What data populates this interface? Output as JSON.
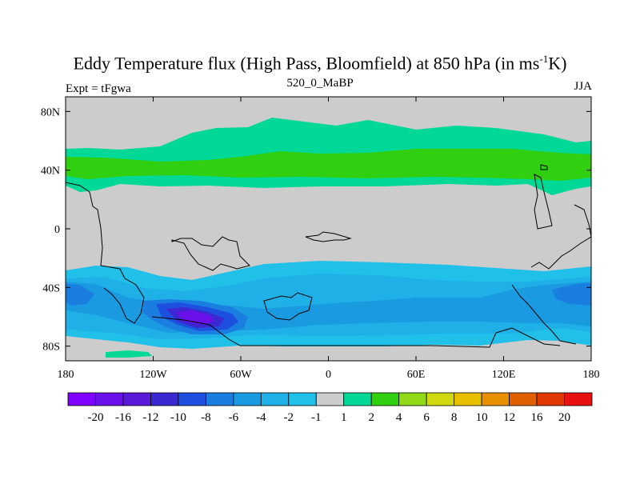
{
  "chart_data": {
    "type": "contour-map",
    "title": "Eddy Temperature flux (High Pass, Bloomfield) at 850 hPa (in ms",
    "title_sup": "-1",
    "title_tail": "K)",
    "subtitle_left": "Expt = tFgwa",
    "subtitle_center": "520_0_MaBP",
    "subtitle_right": "JJA",
    "x_ticks": [
      {
        "value": -180,
        "label": "180"
      },
      {
        "value": -120,
        "label": "120W"
      },
      {
        "value": -60,
        "label": "60W"
      },
      {
        "value": 0,
        "label": "0"
      },
      {
        "value": 60,
        "label": "60E"
      },
      {
        "value": 120,
        "label": "120E"
      },
      {
        "value": 180,
        "label": "180"
      }
    ],
    "y_ticks": [
      {
        "value": 80,
        "label": "80N"
      },
      {
        "value": 40,
        "label": "40N"
      },
      {
        "value": 0,
        "label": "0"
      },
      {
        "value": -40,
        "label": "40S"
      },
      {
        "value": -80,
        "label": "80S"
      }
    ],
    "xlim": [
      -180,
      180
    ],
    "ylim": [
      -90,
      90
    ],
    "colorbar": {
      "colors": [
        "#7f00ff",
        "#6a10e8",
        "#5a18d8",
        "#3b28d0",
        "#1e50e0",
        "#1a7de0",
        "#1a9ae0",
        "#20b0e8",
        "#20c0e8",
        "#cccccc",
        "#00d898",
        "#30d010",
        "#90d818",
        "#d0d810",
        "#e8c000",
        "#e89000",
        "#e06000",
        "#e03800",
        "#e81010"
      ],
      "labels": [
        "-20",
        "-16",
        "-12",
        "-10",
        "-8",
        "-6",
        "-4",
        "-2",
        "-1",
        "1",
        "2",
        "4",
        "6",
        "8",
        "10",
        "12",
        "16",
        "20"
      ]
    },
    "regions": [
      {
        "desc": "NH positive band",
        "lon": [
          -180,
          180
        ],
        "lat": [
          30,
          65
        ],
        "level": 2
      },
      {
        "desc": "NH positive core",
        "lon": [
          -180,
          180
        ],
        "lat": [
          35,
          50
        ],
        "level": 4
      },
      {
        "desc": "SH negative band",
        "lon": [
          -180,
          180
        ],
        "lat": [
          -85,
          -25
        ],
        "level": -1
      },
      {
        "desc": "SH negative interior",
        "lon": [
          -180,
          180
        ],
        "lat": [
          -70,
          -35
        ],
        "level": -2
      },
      {
        "desc": "SH strong eddy",
        "lon": [
          -110,
          -70
        ],
        "lat": [
          -70,
          -52
        ],
        "level": -12
      }
    ]
  }
}
